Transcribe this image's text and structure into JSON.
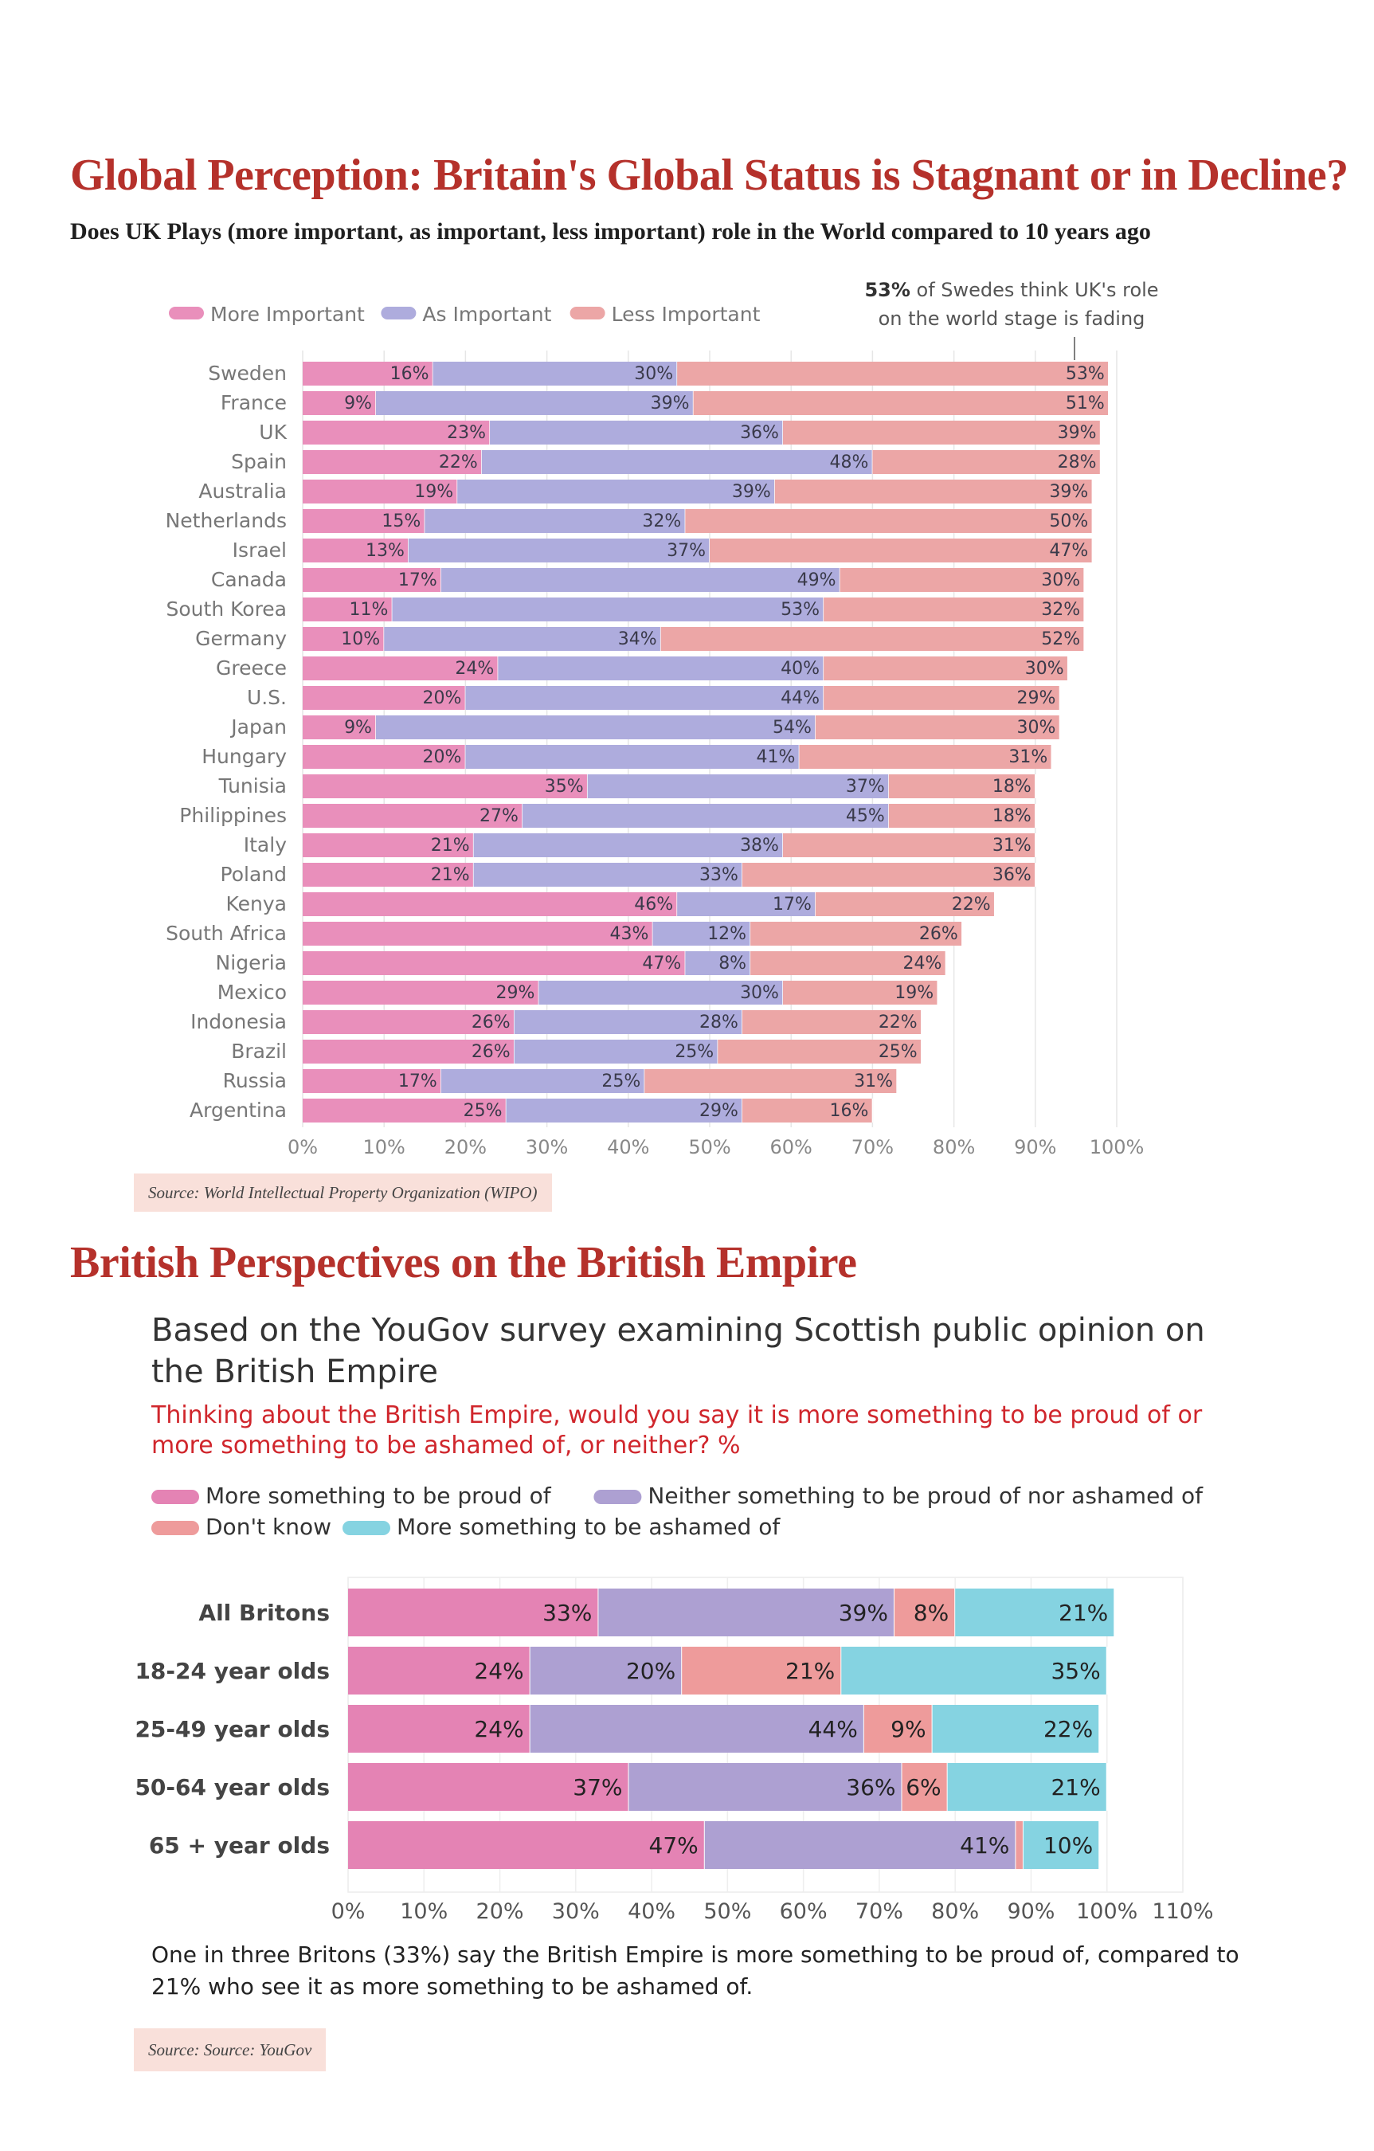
{
  "section1": {
    "title": "Global Perception: Britain's Global Status is Stagnant or in Decline?",
    "subtitle": "Does UK Plays (more important, as important, less important) role in the World compared to 10 years ago",
    "source": "Source: World Intellectual Property Organization (WIPO)"
  },
  "section2": {
    "title": "British Perspectives on the British Empire",
    "source": "Source: Source: YouGov"
  },
  "chart_data": [
    {
      "type": "bar",
      "orientation": "horizontal",
      "stacked": true,
      "categories": [
        "Sweden",
        "France",
        "UK",
        "Spain",
        "Australia",
        "Netherlands",
        "Israel",
        "Canada",
        "South Korea",
        "Germany",
        "Greece",
        "U.S.",
        "Japan",
        "Hungary",
        "Tunisia",
        "Philippines",
        "Italy",
        "Poland",
        "Kenya",
        "South Africa",
        "Nigeria",
        "Mexico",
        "Indonesia",
        "Brazil",
        "Russia",
        "Argentina"
      ],
      "series": [
        {
          "name": "More Important",
          "color": "#e98fbb",
          "values": [
            16,
            9,
            23,
            22,
            19,
            15,
            13,
            17,
            11,
            10,
            24,
            20,
            9,
            20,
            35,
            27,
            21,
            21,
            46,
            43,
            47,
            29,
            26,
            26,
            17,
            25
          ]
        },
        {
          "name": "As Important",
          "color": "#aeacdd",
          "values": [
            30,
            39,
            36,
            48,
            39,
            32,
            37,
            49,
            53,
            34,
            40,
            44,
            54,
            41,
            37,
            45,
            38,
            33,
            17,
            12,
            8,
            30,
            28,
            25,
            25,
            29
          ]
        },
        {
          "name": "Less Important",
          "color": "#eca6a6",
          "values": [
            53,
            51,
            39,
            28,
            39,
            50,
            47,
            30,
            32,
            52,
            30,
            29,
            30,
            31,
            18,
            18,
            31,
            36,
            22,
            26,
            24,
            19,
            22,
            25,
            31,
            16
          ]
        }
      ],
      "value_labels": [
        [
          "16%",
          "30%",
          "53%"
        ],
        [
          "9%",
          "39%",
          "51%"
        ],
        [
          "23%",
          "36%",
          "39%"
        ],
        [
          "22%",
          "48%",
          "28%"
        ],
        [
          "19%",
          "39%",
          "39%"
        ],
        [
          "15%",
          "32%",
          "50%"
        ],
        [
          "13%",
          "37%",
          "47%"
        ],
        [
          "17%",
          "49%",
          "30%"
        ],
        [
          "11%",
          "53%",
          "32%"
        ],
        [
          "10%",
          "34%",
          "52%"
        ],
        [
          "24%",
          "40%",
          "30%"
        ],
        [
          "20%",
          "44%",
          "29%"
        ],
        [
          "9%",
          "54%",
          "30%"
        ],
        [
          "20%",
          "41%",
          "31%"
        ],
        [
          "35%",
          "37%",
          "18%"
        ],
        [
          "27%",
          "45%",
          "18%"
        ],
        [
          "21%",
          "38%",
          "31%"
        ],
        [
          "21%",
          "33%",
          "36%"
        ],
        [
          "46%",
          "17%",
          "22%"
        ],
        [
          "43%",
          "12%",
          "26%"
        ],
        [
          "47%",
          "8%",
          "24%"
        ],
        [
          "29%",
          "30%",
          "19%"
        ],
        [
          "26%",
          "28%",
          "22%"
        ],
        [
          "26%",
          "25%",
          "25%"
        ],
        [
          "17%",
          "25%",
          "31%"
        ],
        [
          "25%",
          "29%",
          "16%"
        ]
      ],
      "xlim": [
        0,
        100
      ],
      "xticks": [
        "0%",
        "10%",
        "20%",
        "30%",
        "40%",
        "50%",
        "60%",
        "70%",
        "80%",
        "90%",
        "100%"
      ],
      "legend_position": "top-left",
      "annotation": {
        "bold": "53%",
        "text": " of Swedes think UK's role",
        "line2": "on the world stage is fading"
      }
    },
    {
      "type": "bar",
      "orientation": "horizontal",
      "stacked": true,
      "title": "Based on the YouGov survey examining Scottish public opinion on the British Empire",
      "question": "Thinking about the British Empire, would you say it is more something to be proud of or more something to be ashamed of, or neither? %",
      "categories": [
        "All Britons",
        "18-24 year olds",
        "25-49 year olds",
        "50-64 year olds",
        "65 + year olds"
      ],
      "series": [
        {
          "name": "More something to be proud of",
          "color": "#e483b4",
          "values": [
            33,
            24,
            24,
            37,
            47
          ]
        },
        {
          "name": "Neither  something to be proud of nor ashamed of",
          "color": "#ada0d2",
          "values": [
            39,
            20,
            44,
            36,
            41
          ]
        },
        {
          "name": "Don't know",
          "color": "#ee9b9b",
          "values": [
            8,
            21,
            9,
            6,
            1
          ]
        },
        {
          "name": "More  something to be ashamed of",
          "color": "#85d3e1",
          "values": [
            21,
            35,
            22,
            21,
            10
          ]
        }
      ],
      "value_labels": [
        [
          "33%",
          "39%",
          "8%",
          "21%"
        ],
        [
          "24%",
          "20%",
          "21%",
          "35%"
        ],
        [
          "24%",
          "44%",
          "9%",
          "22%"
        ],
        [
          "37%",
          "36%",
          "6%",
          "21%"
        ],
        [
          "47%",
          "41%",
          "",
          "10%"
        ]
      ],
      "xlim": [
        0,
        110
      ],
      "xticks": [
        "0%",
        "10%",
        "20%",
        "30%",
        "40%",
        "50%",
        "60%",
        "70%",
        "80%",
        "90%",
        "100%",
        "110%"
      ],
      "legend_position": "top-left",
      "footnote": "One in three Britons (33%) say the British Empire is more something to be proud of, compared to 21% who see it as more something to be ashamed of."
    }
  ]
}
